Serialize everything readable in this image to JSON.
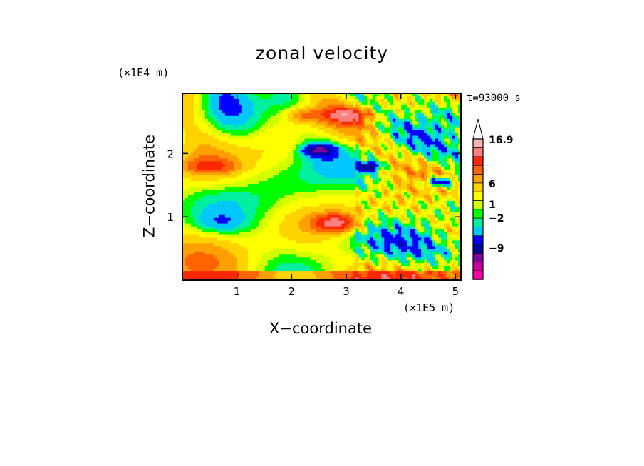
{
  "chart_data": {
    "type": "heatmap",
    "title": "zonal velocity",
    "xlabel": "X−coordinate",
    "ylabel": "Z−coordinate",
    "x_exponent_label": "(×1E5 m)",
    "z_exponent_label": "(×1E4 m)",
    "time_label": "t=93000 s",
    "xlim": [
      0.0,
      5.1
    ],
    "ylim": [
      0.0,
      2.95
    ],
    "x_ticks": [
      "1",
      "2",
      "3",
      "4",
      "5"
    ],
    "y_ticks": [
      "1",
      "2"
    ],
    "colorbar": {
      "levels_labels": [
        "16.9",
        "6",
        "1",
        "−2",
        "−9"
      ],
      "colors": [
        "#ff00a8",
        "#c800a0",
        "#8000a0",
        "#0000a0",
        "#0000ff",
        "#00c8ff",
        "#00f0a0",
        "#00ff00",
        "#d2ff00",
        "#ffff00",
        "#ffd200",
        "#ffa000",
        "#ff6400",
        "#ff2800",
        "#ff8080",
        "#ffb4b4"
      ],
      "extend_top_arrow": true
    },
    "features": [
      {
        "x": 3.0,
        "z": 2.6,
        "value": 8,
        "sx": 0.4,
        "sz": 0.1
      },
      {
        "x": 2.2,
        "z": 2.6,
        "value": 4,
        "sx": 0.3,
        "sz": 0.12
      },
      {
        "x": 2.5,
        "z": 2.05,
        "value": -9,
        "sx": 0.28,
        "sz": 0.1
      },
      {
        "x": 3.45,
        "z": 1.8,
        "value": -8,
        "sx": 0.18,
        "sz": 0.07
      },
      {
        "x": 2.8,
        "z": 0.9,
        "value": 9,
        "sx": 0.38,
        "sz": 0.14
      },
      {
        "x": 0.5,
        "z": 1.8,
        "value": 5,
        "sx": 0.45,
        "sz": 0.12
      },
      {
        "x": 4.7,
        "z": 1.55,
        "value": -8,
        "sx": 0.3,
        "sz": 0.08
      },
      {
        "x": 0.7,
        "z": 0.9,
        "value": -2,
        "sx": 0.45,
        "sz": 0.15
      }
    ]
  }
}
